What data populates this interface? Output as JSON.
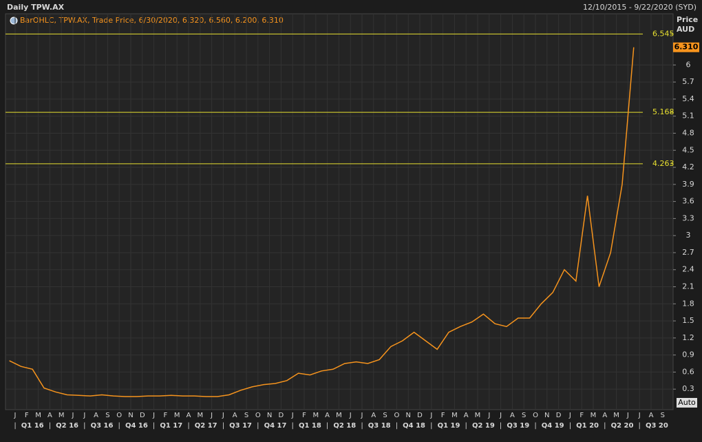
{
  "chart_data": {
    "type": "line",
    "title": "Daily TPW.AX",
    "date_range": "12/10/2015 - 9/22/2020 (SYD)",
    "legend": "BarOHLC, TPW.AX, Trade Price, 6/30/2020, 6.320, 6.560, 6.200, 6.310",
    "y_axis_title": [
      "Price",
      "AUD"
    ],
    "scale_button": "Auto",
    "color": "#f7941d",
    "x": [
      "2015-12",
      "2016-01",
      "2016-02",
      "2016-03",
      "2016-04",
      "2016-05",
      "2016-06",
      "2016-07",
      "2016-08",
      "2016-09",
      "2016-10",
      "2016-11",
      "2016-12",
      "2017-01",
      "2017-02",
      "2017-03",
      "2017-04",
      "2017-05",
      "2017-06",
      "2017-07",
      "2017-08",
      "2017-09",
      "2017-10",
      "2017-11",
      "2017-12",
      "2018-01",
      "2018-02",
      "2018-03",
      "2018-04",
      "2018-05",
      "2018-06",
      "2018-07",
      "2018-08",
      "2018-09",
      "2018-10",
      "2018-11",
      "2018-12",
      "2019-01",
      "2019-02",
      "2019-03",
      "2019-04",
      "2019-05",
      "2019-06",
      "2019-07",
      "2019-08",
      "2019-09",
      "2019-10",
      "2019-11",
      "2019-12",
      "2020-01",
      "2020-02",
      "2020-03",
      "2020-04",
      "2020-05",
      "2020-06"
    ],
    "values": [
      0.8,
      0.7,
      0.65,
      0.32,
      0.25,
      0.2,
      0.19,
      0.18,
      0.2,
      0.18,
      0.17,
      0.17,
      0.18,
      0.18,
      0.19,
      0.18,
      0.18,
      0.17,
      0.17,
      0.2,
      0.28,
      0.34,
      0.38,
      0.4,
      0.45,
      0.58,
      0.55,
      0.62,
      0.65,
      0.75,
      0.78,
      0.75,
      0.82,
      1.05,
      1.15,
      1.3,
      1.15,
      1.0,
      1.3,
      1.4,
      1.48,
      1.62,
      1.45,
      1.4,
      1.55,
      1.55,
      1.8,
      2.0,
      2.4,
      2.2,
      3.7,
      2.1,
      2.7,
      3.9,
      6.31
    ],
    "last_price": {
      "value": 6.31,
      "label": "6.310"
    },
    "hlines": [
      6.545,
      5.168,
      4.263
    ],
    "hline_color": "#e8e030",
    "months": [
      "J",
      "F",
      "M",
      "A",
      "M",
      "J",
      "J",
      "A",
      "S",
      "O",
      "N",
      "D",
      "J",
      "F",
      "M",
      "A",
      "M",
      "J",
      "J",
      "A",
      "S",
      "O",
      "N",
      "D",
      "J",
      "F",
      "M",
      "A",
      "M",
      "J",
      "J",
      "A",
      "S",
      "O",
      "N",
      "D",
      "J",
      "F",
      "M",
      "A",
      "M",
      "J",
      "J",
      "A",
      "S",
      "O",
      "N",
      "D",
      "J",
      "F",
      "M",
      "A",
      "M",
      "J",
      "J",
      "A",
      "S"
    ],
    "quarters": [
      "Q1 16",
      "Q2 16",
      "Q3 16",
      "Q4 16",
      "Q1 17",
      "Q2 17",
      "Q3 17",
      "Q4 17",
      "Q1 18",
      "Q2 18",
      "Q3 18",
      "Q4 18",
      "Q1 19",
      "Q2 19",
      "Q3 19",
      "Q4 19",
      "Q1 20",
      "Q2 20",
      "Q3 20"
    ],
    "ylim": [
      0,
      6.9
    ],
    "yticks": [
      0.3,
      0.6,
      0.9,
      1.2,
      1.5,
      1.8,
      2.1,
      2.4,
      2.7,
      3,
      3.3,
      3.6,
      3.9,
      4.2,
      4.5,
      4.8,
      5.1,
      5.4,
      5.7,
      6
    ],
    "grid": true
  }
}
